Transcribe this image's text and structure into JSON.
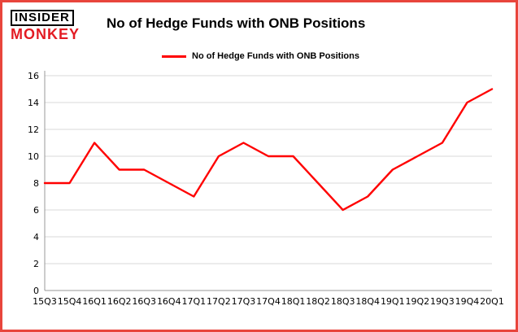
{
  "brand": {
    "line1": "INSIDER",
    "line2": "MONKEY"
  },
  "header": {
    "title": "No of Hedge Funds with ONB Positions"
  },
  "legend": {
    "label": "No of Hedge Funds with ONB Positions"
  },
  "colors": {
    "frame": "#e8453c",
    "series": "#ff0000",
    "brand_red": "#e31b23",
    "grid": "#d9d9d9",
    "spine": "#999999"
  },
  "chart_data": {
    "type": "line",
    "title": "No of Hedge Funds with ONB Positions",
    "categories": [
      "15Q3",
      "15Q4",
      "16Q1",
      "16Q2",
      "16Q3",
      "16Q4",
      "17Q1",
      "17Q2",
      "17Q3",
      "17Q4",
      "18Q1",
      "18Q2",
      "18Q3",
      "18Q4",
      "19Q1",
      "19Q2",
      "19Q3",
      "19Q4",
      "20Q1"
    ],
    "values": [
      8,
      8,
      11,
      9,
      9,
      8,
      7,
      10,
      11,
      10,
      10,
      8,
      6,
      7,
      9,
      10,
      11,
      14,
      15
    ],
    "xlabel": "",
    "ylabel": "",
    "ylim": [
      0,
      16
    ],
    "ytick_step": 2,
    "grid": true,
    "legend_position": "top-left",
    "line_color": "#ff0000"
  }
}
